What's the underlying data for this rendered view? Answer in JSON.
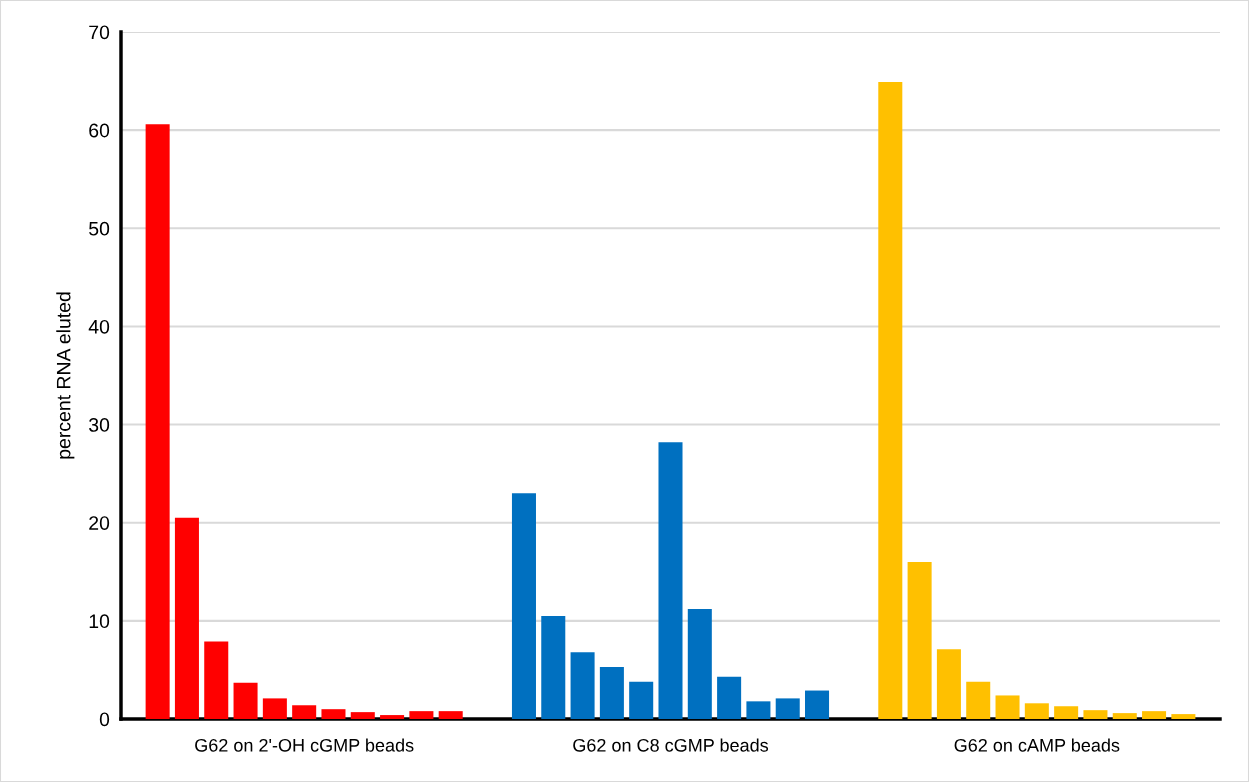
{
  "chart_data": {
    "type": "bar",
    "ylabel": "percent RNA eluted",
    "categories": [
      "G62 on 2'-OH cGMP beads",
      "G62 on C8 cGMP beads",
      "G62 on cAMP beads"
    ],
    "series": [
      {
        "colors": [
          "#ff0000",
          "#0070c0",
          "#ffc000"
        ],
        "values": [
          60.6,
          23.0,
          64.9
        ]
      },
      {
        "colors": [
          "#ff0000",
          "#0070c0",
          "#ffc000"
        ],
        "values": [
          20.5,
          10.5,
          16.0
        ]
      },
      {
        "colors": [
          "#ff0000",
          "#0070c0",
          "#ffc000"
        ],
        "values": [
          7.9,
          6.8,
          7.1
        ]
      },
      {
        "colors": [
          "#ff0000",
          "#0070c0",
          "#ffc000"
        ],
        "values": [
          3.7,
          5.3,
          3.8
        ]
      },
      {
        "colors": [
          "#ff0000",
          "#0070c0",
          "#ffc000"
        ],
        "values": [
          2.1,
          3.8,
          2.4
        ]
      },
      {
        "colors": [
          "#ff0000",
          "#0070c0",
          "#ffc000"
        ],
        "values": [
          1.4,
          28.2,
          1.6
        ]
      },
      {
        "colors": [
          "#ff0000",
          "#0070c0",
          "#ffc000"
        ],
        "values": [
          1.0,
          11.2,
          1.3
        ]
      },
      {
        "colors": [
          "#ff0000",
          "#0070c0",
          "#ffc000"
        ],
        "values": [
          0.7,
          4.3,
          0.9
        ]
      },
      {
        "colors": [
          "#ff0000",
          "#0070c0",
          "#ffc000"
        ],
        "values": [
          0.4,
          1.8,
          0.6
        ]
      },
      {
        "colors": [
          "#ff0000",
          "#0070c0",
          "#ffc000"
        ],
        "values": [
          0.8,
          2.1,
          0.8
        ]
      },
      {
        "colors": [
          "#ff0000",
          "#0070c0",
          "#ffc000"
        ],
        "values": [
          0.8,
          2.9,
          0.5
        ]
      }
    ],
    "ylim": [
      0,
      70
    ],
    "yticks": [
      0,
      10,
      20,
      30,
      40,
      50,
      60,
      70
    ],
    "grid": "y"
  }
}
